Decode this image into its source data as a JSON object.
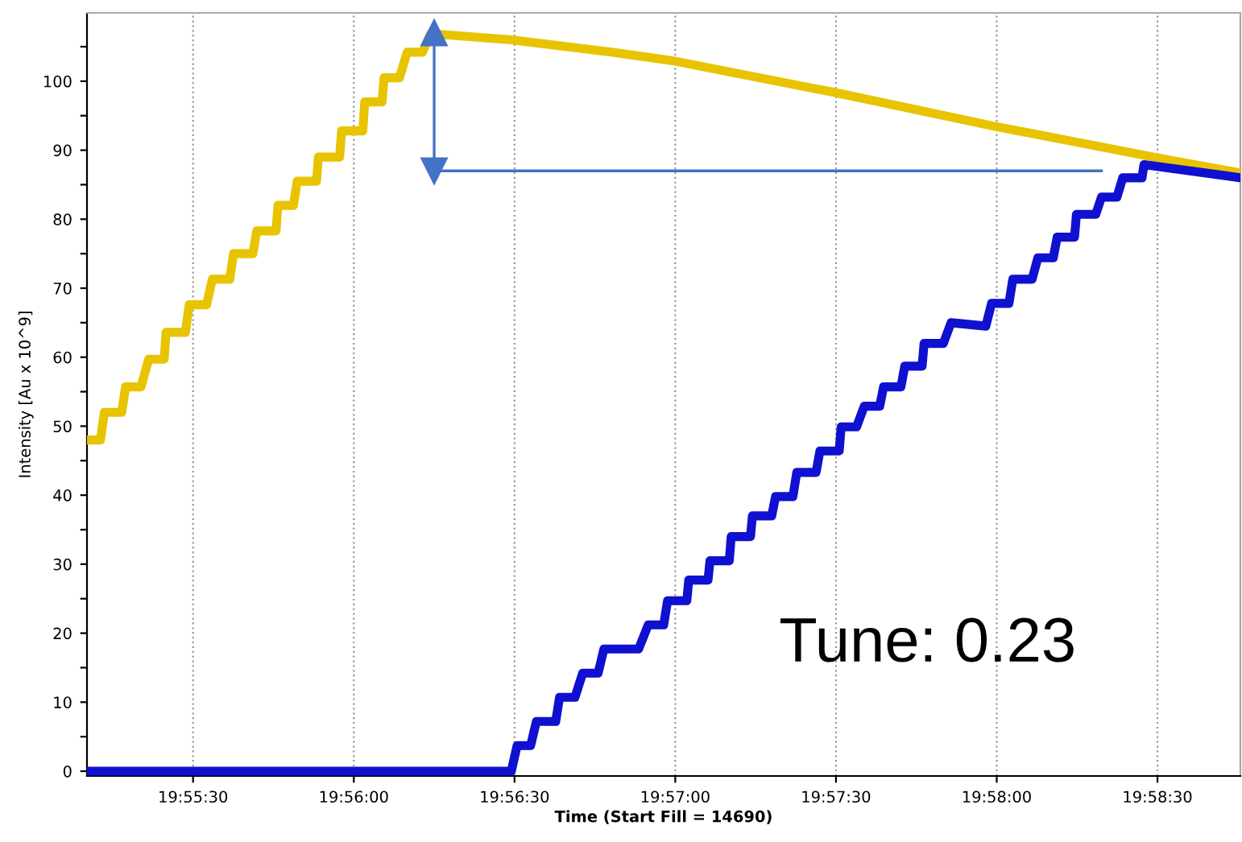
{
  "chart_data": {
    "type": "line",
    "xlabel": "Time (Start Fill = 14690)",
    "ylabel": "Intensity [Au x 10^9]",
    "xlim": [
      19.9195,
      19.9793
    ],
    "ylim": [
      -0.7,
      109.9
    ],
    "xticks": [
      {
        "value": 19.925,
        "label": "19:55:30"
      },
      {
        "value": 19.933333,
        "label": "19:56:00"
      },
      {
        "value": 19.941667,
        "label": "19:56:30"
      },
      {
        "value": 19.95,
        "label": "19:57:00"
      },
      {
        "value": 19.958333,
        "label": "19:57:30"
      },
      {
        "value": 19.966667,
        "label": "19:58:00"
      },
      {
        "value": 19.975,
        "label": "19:58:30"
      }
    ],
    "yticks": [
      0,
      {
        "value": 5,
        "label": null
      },
      10,
      {
        "value": 15,
        "label": null
      },
      20,
      {
        "value": 25,
        "label": null
      },
      30,
      {
        "value": 35,
        "label": null
      },
      40,
      {
        "value": 45,
        "label": null
      },
      50,
      {
        "value": 55,
        "label": null
      },
      60,
      {
        "value": 65,
        "label": null
      },
      70,
      {
        "value": 75,
        "label": null
      },
      80,
      {
        "value": 85,
        "label": null
      },
      90,
      {
        "value": 95,
        "label": null
      },
      100,
      {
        "value": 105,
        "label": null
      }
    ],
    "grid": "x",
    "series": [
      {
        "color": "#e8c400",
        "x": [
          19.9195,
          19.9202,
          19.9204,
          19.9213,
          19.9215,
          19.9223,
          19.9227,
          19.9235,
          19.9236,
          19.9246,
          19.9248,
          19.9257,
          19.926,
          19.9269,
          19.9271,
          19.9281,
          19.9283,
          19.9293,
          19.9294,
          19.9302,
          19.9304,
          19.9314,
          19.9315,
          19.9326,
          19.9327,
          19.9338,
          19.9339,
          19.9348,
          19.9349,
          19.9357,
          19.9361,
          19.9369,
          19.9373,
          19.9377,
          19.9415,
          19.9467,
          19.9498,
          19.9582,
          19.9665,
          19.9748,
          19.9793
        ],
        "values": [
          48,
          48,
          52,
          52,
          55.7,
          55.7,
          59.7,
          59.7,
          63.6,
          63.6,
          67.6,
          67.6,
          71.3,
          71.3,
          75,
          75,
          78.3,
          78.3,
          82,
          82,
          85.5,
          85.5,
          89,
          89,
          92.8,
          92.8,
          97,
          97,
          100.5,
          100.5,
          104.2,
          104.2,
          106.8,
          106.8,
          106,
          104.2,
          103,
          98.4,
          93.5,
          89,
          86.7
        ]
      },
      {
        "color": "#1010d0",
        "x": [
          19.9195,
          19.9415,
          19.9418,
          19.9425,
          19.9428,
          19.9438,
          19.944,
          19.9448,
          19.9452,
          19.946,
          19.9463,
          19.9481,
          19.9486,
          19.9494,
          19.9496,
          19.9506,
          19.9507,
          19.9517,
          19.9518,
          19.9528,
          19.9529,
          19.9539,
          19.954,
          19.955,
          19.9552,
          19.9561,
          19.9563,
          19.9573,
          19.9575,
          19.9585,
          19.9586,
          19.9594,
          19.9598,
          19.9606,
          19.9608,
          19.9617,
          19.9619,
          19.9628,
          19.9629,
          19.9639,
          19.9643,
          19.9661,
          19.9664,
          19.9673,
          19.9675,
          19.9685,
          19.9688,
          19.9696,
          19.9698,
          19.9707,
          19.9708,
          19.9718,
          19.9721,
          19.9729,
          19.9732,
          19.9742,
          19.9743,
          19.9793
        ],
        "values": [
          0,
          0,
          3.7,
          3.7,
          7.2,
          7.2,
          10.7,
          10.7,
          14.2,
          14.2,
          17.7,
          17.7,
          21.2,
          21.2,
          24.7,
          24.7,
          27.7,
          27.7,
          30.5,
          30.5,
          34,
          34,
          37,
          37,
          39.8,
          39.8,
          43.3,
          43.3,
          46.4,
          46.4,
          49.9,
          49.9,
          52.9,
          52.9,
          55.7,
          55.7,
          58.7,
          58.7,
          62,
          62,
          65,
          64.5,
          67.8,
          67.8,
          71.3,
          71.3,
          74.4,
          74.4,
          77.4,
          77.4,
          80.7,
          80.7,
          83.2,
          83.2,
          86,
          86,
          87.9,
          86
        ]
      },
      {
        "color": "#4472c4",
        "marker": "triangle",
        "x": [
          19.9375,
          19.9375,
          19.9721
        ],
        "values": [
          107,
          87,
          87
        ]
      }
    ],
    "annotations": [
      "Tune: 0.23"
    ]
  }
}
